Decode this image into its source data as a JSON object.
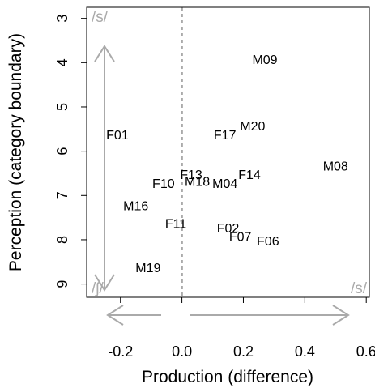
{
  "chart_data": {
    "type": "scatter",
    "title": "",
    "xlabel": "Production (difference)",
    "ylabel": "Perception (category boundary)",
    "xlim": [
      -0.31,
      0.61
    ],
    "ylim": [
      9.3,
      2.75
    ],
    "y_reversed": true,
    "x_ticks": [
      -0.2,
      0.0,
      0.2,
      0.4,
      0.6
    ],
    "x_tick_labels": [
      "-0.2",
      "0.0",
      "0.2",
      "0.4",
      "0.6"
    ],
    "y_ticks": [
      3,
      4,
      5,
      6,
      7,
      8,
      9
    ],
    "y_tick_labels": [
      "3",
      "4",
      "5",
      "6",
      "7",
      "8",
      "9"
    ],
    "grid": false,
    "reference_line": {
      "x": 0,
      "style": "dashed",
      "color": "#aaaaaa"
    },
    "points": [
      {
        "label": "M09",
        "x": 0.27,
        "y": 3.95
      },
      {
        "label": "M20",
        "x": 0.23,
        "y": 5.45
      },
      {
        "label": "F17",
        "x": 0.14,
        "y": 5.65
      },
      {
        "label": "F01",
        "x": -0.21,
        "y": 5.65
      },
      {
        "label": "M08",
        "x": 0.5,
        "y": 6.35
      },
      {
        "label": "F13",
        "x": 0.03,
        "y": 6.55
      },
      {
        "label": "F14",
        "x": 0.22,
        "y": 6.55
      },
      {
        "label": "M18",
        "x": 0.05,
        "y": 6.7
      },
      {
        "label": "M04",
        "x": 0.14,
        "y": 6.75
      },
      {
        "label": "F10",
        "x": -0.06,
        "y": 6.75
      },
      {
        "label": "M16",
        "x": -0.15,
        "y": 7.25
      },
      {
        "label": "F11",
        "x": -0.02,
        "y": 7.65
      },
      {
        "label": "F02",
        "x": 0.15,
        "y": 7.75
      },
      {
        "label": "F07",
        "x": 0.19,
        "y": 7.95
      },
      {
        "label": "F06",
        "x": 0.28,
        "y": 8.05
      },
      {
        "label": "M19",
        "x": -0.11,
        "y": 8.65
      }
    ],
    "annotations": {
      "s_top": "/s/",
      "sh_bottom": "/ʃ/",
      "s_right": "/s/"
    },
    "annotation_color": "#aaaaaa"
  }
}
